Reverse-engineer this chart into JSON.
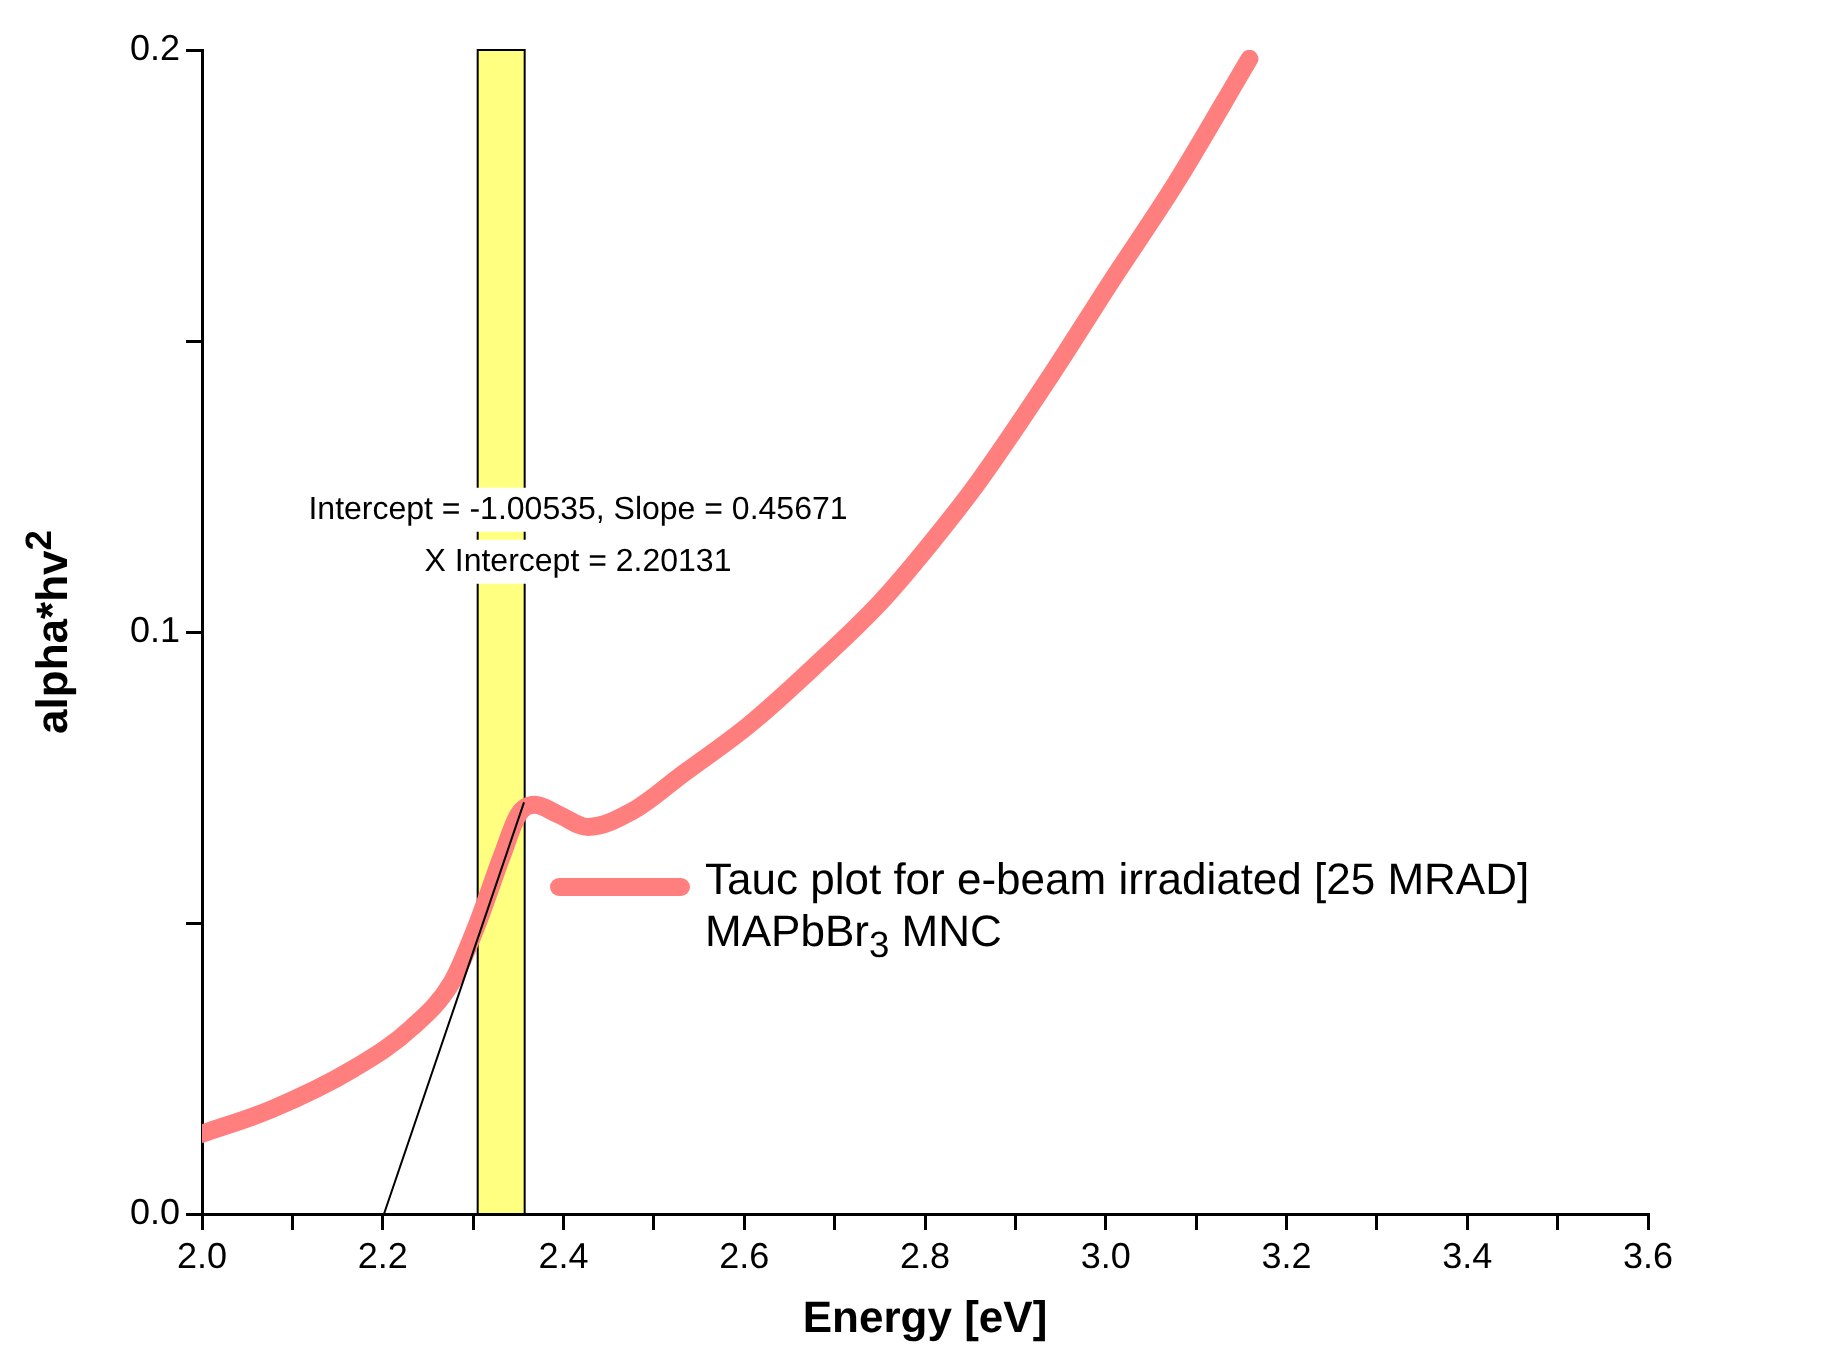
{
  "chart_data": {
    "type": "line",
    "xlabel": "Energy [eV]",
    "ylabel": "alpha*hv$^{2}$",
    "xlim": [
      2.0,
      3.6
    ],
    "ylim": [
      0.0,
      0.2
    ],
    "xticks": [
      {
        "value": 2.0,
        "label": "2.0"
      },
      {
        "value": 2.1,
        "label": null
      },
      {
        "value": 2.2,
        "label": "2.2"
      },
      {
        "value": 2.3,
        "label": null
      },
      {
        "value": 2.4,
        "label": "2.4"
      },
      {
        "value": 2.5,
        "label": null
      },
      {
        "value": 2.6,
        "label": "2.6"
      },
      {
        "value": 2.7,
        "label": null
      },
      {
        "value": 2.8,
        "label": "2.8"
      },
      {
        "value": 2.9,
        "label": null
      },
      {
        "value": 3.0,
        "label": "3.0"
      },
      {
        "value": 3.1,
        "label": null
      },
      {
        "value": 3.2,
        "label": "3.2"
      },
      {
        "value": 3.3,
        "label": null
      },
      {
        "value": 3.4,
        "label": "3.4"
      },
      {
        "value": 3.5,
        "label": null
      },
      {
        "value": 3.6,
        "label": "3.6"
      }
    ],
    "yticks": [
      {
        "value": 0.0,
        "label": "0.0"
      },
      {
        "value": 0.05,
        "label": null
      },
      {
        "value": 0.1,
        "label": "0.1"
      },
      {
        "value": 0.15,
        "label": null
      },
      {
        "value": 0.2,
        "label": "0.2"
      }
    ],
    "series": [
      {
        "name": "Tauc plot for e-beam irradiated [25 MRAD] MAPbBr$_{3}$ MNC",
        "color": "#ff7f7f",
        "x": [
          2.0,
          2.077,
          2.168,
          2.232,
          2.277,
          2.305,
          2.332,
          2.35,
          2.368,
          2.395,
          2.427,
          2.477,
          2.532,
          2.605,
          2.677,
          2.75,
          2.805,
          2.86,
          2.941,
          3.005,
          3.077,
          3.159
        ],
        "values": [
          0.0138,
          0.018,
          0.025,
          0.032,
          0.04,
          0.05,
          0.0616,
          0.0686,
          0.0703,
          0.0686,
          0.0665,
          0.0693,
          0.0756,
          0.084,
          0.094,
          0.105,
          0.115,
          0.126,
          0.1445,
          0.16,
          0.177,
          0.1985
        ]
      },
      {
        "type": "line",
        "color": "#000000",
        "x": [
          2.2013,
          2.356
        ],
        "values": [
          0.0,
          0.0706
        ]
      }
    ],
    "bands": [
      {
        "axis": "x",
        "from": 2.305,
        "to": 2.357,
        "color": "#ffff80"
      }
    ],
    "annotations": [
      "Intercept = -1.00535, Slope = 0.45671",
      "X Intercept = 2.20131"
    ],
    "legend": "right"
  }
}
